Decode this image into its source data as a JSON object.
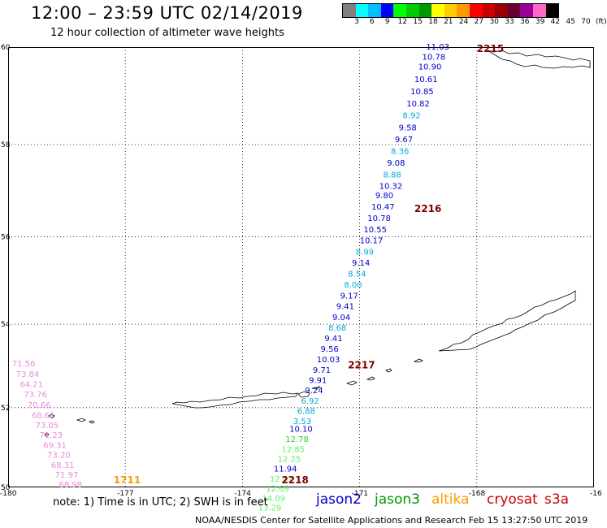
{
  "header": {
    "title": "12:00 – 23:59 UTC 02/14/2019",
    "subtitle": "12 hour collection of altimeter wave heights"
  },
  "scale": {
    "labels": [
      "3",
      "6",
      "9",
      "12",
      "15",
      "18",
      "21",
      "24",
      "27",
      "30",
      "33",
      "36",
      "39",
      "42",
      "45",
      "70",
      "(ft)"
    ],
    "colors": [
      "#808080",
      "#00ffff",
      "#00bfff",
      "#0000ff",
      "#00ff00",
      "#00cc00",
      "#009900",
      "#ffff00",
      "#ffcc00",
      "#ff9900",
      "#ff0000",
      "#cc0000",
      "#990000",
      "#660033",
      "#990099",
      "#ff66cc",
      "#000000"
    ]
  },
  "axes": {
    "lat_labels": [
      "60",
      "58",
      "56",
      "54",
      "52",
      "50"
    ],
    "lon_labels": [
      "-180",
      "-177",
      "-174",
      "-171",
      "-168",
      "-16"
    ]
  },
  "track_colors": {
    "jason2": "#0000cc",
    "jason3": "#009900",
    "altika": "#ff9900",
    "cryosat": "#cc0000",
    "time_label": "#800000",
    "swh_blue": "#0000cc",
    "swh_cyan": "#00aadd",
    "swh_green": "#33cc33",
    "swh_light_green": "#66ee66",
    "swh_pink": "#ee88dd"
  },
  "tracks": [
    {
      "name": "main-pass",
      "time_labels": [
        {
          "text": "2215",
          "lon": -168.0,
          "lat": 59.9
        },
        {
          "text": "2216",
          "lon": -169.6,
          "lat": 56.55
        },
        {
          "text": "2217",
          "lon": -171.3,
          "lat": 52.95
        },
        {
          "text": "2218",
          "lon": -173.0,
          "lat": 50.1
        }
      ],
      "swh": [
        {
          "v": "11.03",
          "lon": -169.3,
          "lat": 59.95,
          "c": "blue"
        },
        {
          "v": "10.78",
          "lon": -169.4,
          "lat": 59.75,
          "c": "blue"
        },
        {
          "v": "10.90",
          "lon": -169.5,
          "lat": 59.55,
          "c": "blue"
        },
        {
          "v": "10.61",
          "lon": -169.6,
          "lat": 59.3,
          "c": "blue"
        },
        {
          "v": "10.85",
          "lon": -169.7,
          "lat": 59.05,
          "c": "blue"
        },
        {
          "v": "10.82",
          "lon": -169.8,
          "lat": 58.8,
          "c": "blue"
        },
        {
          "v": "8.92",
          "lon": -169.9,
          "lat": 58.55,
          "c": "cyan"
        },
        {
          "v": "9.58",
          "lon": -170.0,
          "lat": 58.3,
          "c": "blue"
        },
        {
          "v": "9.67",
          "lon": -170.1,
          "lat": 58.05,
          "c": "blue"
        },
        {
          "v": "8.36",
          "lon": -170.2,
          "lat": 57.8,
          "c": "cyan"
        },
        {
          "v": "9.08",
          "lon": -170.3,
          "lat": 57.55,
          "c": "blue"
        },
        {
          "v": "8.88",
          "lon": -170.4,
          "lat": 57.3,
          "c": "cyan"
        },
        {
          "v": "10.32",
          "lon": -170.5,
          "lat": 57.05,
          "c": "blue"
        },
        {
          "v": "9.80",
          "lon": -170.6,
          "lat": 56.85,
          "c": "blue"
        },
        {
          "v": "10.47",
          "lon": -170.7,
          "lat": 56.6,
          "c": "blue"
        },
        {
          "v": "10.78",
          "lon": -170.8,
          "lat": 56.35,
          "c": "blue"
        },
        {
          "v": "10.55",
          "lon": -170.9,
          "lat": 56.1,
          "c": "blue"
        },
        {
          "v": "10.17",
          "lon": -171.0,
          "lat": 55.85,
          "c": "blue"
        },
        {
          "v": "8.99",
          "lon": -171.1,
          "lat": 55.6,
          "c": "cyan"
        },
        {
          "v": "9.14",
          "lon": -171.2,
          "lat": 55.35,
          "c": "blue"
        },
        {
          "v": "8.54",
          "lon": -171.3,
          "lat": 55.1,
          "c": "cyan"
        },
        {
          "v": "8.00",
          "lon": -171.4,
          "lat": 54.85,
          "c": "cyan"
        },
        {
          "v": "9.17",
          "lon": -171.5,
          "lat": 54.6,
          "c": "blue"
        },
        {
          "v": "9.41",
          "lon": -171.6,
          "lat": 54.35,
          "c": "blue"
        },
        {
          "v": "9.04",
          "lon": -171.7,
          "lat": 54.1,
          "c": "blue"
        },
        {
          "v": "8.68",
          "lon": -171.8,
          "lat": 53.85,
          "c": "cyan"
        },
        {
          "v": "9.41",
          "lon": -171.9,
          "lat": 53.6,
          "c": "blue"
        },
        {
          "v": "9.56",
          "lon": -172.0,
          "lat": 53.35,
          "c": "blue"
        },
        {
          "v": "10.03",
          "lon": -172.1,
          "lat": 53.1,
          "c": "blue"
        },
        {
          "v": "9.71",
          "lon": -172.2,
          "lat": 52.85,
          "c": "blue"
        },
        {
          "v": "9.91",
          "lon": -172.3,
          "lat": 52.6,
          "c": "blue"
        },
        {
          "v": "9.24",
          "lon": -172.4,
          "lat": 52.35,
          "c": "blue"
        },
        {
          "v": "6.92",
          "lon": -172.5,
          "lat": 52.1,
          "c": "cyan"
        },
        {
          "v": "6.88",
          "lon": -172.6,
          "lat": 51.85,
          "c": "cyan"
        },
        {
          "v": "3.53",
          "lon": -172.7,
          "lat": 51.6,
          "c": "cyan"
        },
        {
          "v": "10.10",
          "lon": -172.8,
          "lat": 51.4,
          "c": "blue"
        },
        {
          "v": "12.78",
          "lon": -172.9,
          "lat": 51.15,
          "c": "green"
        },
        {
          "v": "12.85",
          "lon": -173.0,
          "lat": 50.9,
          "c": "lightgreen"
        },
        {
          "v": "12.25",
          "lon": -173.1,
          "lat": 50.65,
          "c": "lightgreen"
        },
        {
          "v": "11.94",
          "lon": -173.2,
          "lat": 50.4,
          "c": "blue"
        },
        {
          "v": "12.67",
          "lon": -173.3,
          "lat": 50.15,
          "c": "lightgreen"
        },
        {
          "v": "12.69",
          "lon": -173.4,
          "lat": 49.9,
          "c": "lightgreen"
        },
        {
          "v": "14.09",
          "lon": -173.5,
          "lat": 49.65,
          "c": "lightgreen"
        },
        {
          "v": "13.29",
          "lon": -173.6,
          "lat": 49.4,
          "c": "lightgreen"
        }
      ]
    },
    {
      "name": "west-pass",
      "time_labels": [
        {
          "text": "1711",
          "lon": -177.3,
          "lat": 50.1
        }
      ],
      "swh": [
        {
          "v": "71.56",
          "lon": -179.9,
          "lat": 53.0,
          "c": "pink"
        },
        {
          "v": "73.84",
          "lon": -179.8,
          "lat": 52.75,
          "c": "pink"
        },
        {
          "v": "64.21",
          "lon": -179.7,
          "lat": 52.5,
          "c": "pink"
        },
        {
          "v": "73.76",
          "lon": -179.6,
          "lat": 52.25,
          "c": "pink"
        },
        {
          "v": "70.66",
          "lon": -179.5,
          "lat": 52.0,
          "c": "pink"
        },
        {
          "v": "68.61",
          "lon": -179.4,
          "lat": 51.75,
          "c": "pink"
        },
        {
          "v": "73.05",
          "lon": -179.3,
          "lat": 51.5,
          "c": "pink"
        },
        {
          "v": "71.23",
          "lon": -179.2,
          "lat": 51.25,
          "c": "pink"
        },
        {
          "v": "69.31",
          "lon": -179.1,
          "lat": 51.0,
          "c": "pink"
        },
        {
          "v": "73.20",
          "lon": -179.0,
          "lat": 50.75,
          "c": "pink"
        },
        {
          "v": "68.31",
          "lon": -178.9,
          "lat": 50.5,
          "c": "pink"
        },
        {
          "v": "71.97",
          "lon": -178.8,
          "lat": 50.25,
          "c": "pink"
        },
        {
          "v": "68.98",
          "lon": -178.7,
          "lat": 50.0,
          "c": "pink"
        }
      ]
    }
  ],
  "footer": {
    "note": "note:  1) Time is in UTC;  2) SWH is in feet",
    "satellites": [
      {
        "name": "jason2",
        "color": "#0000cc"
      },
      {
        "name": "jason3",
        "color": "#009900"
      },
      {
        "name": "altika",
        "color": "#ff9900"
      },
      {
        "name": "cryosat",
        "color": "#cc0000"
      },
      {
        "name": "s3a",
        "color": "#cc0000"
      }
    ],
    "credit": "NOAA/NESDIS Center for Satellite Applications and Research     Feb 15 13:27:50 UTC 2019"
  }
}
